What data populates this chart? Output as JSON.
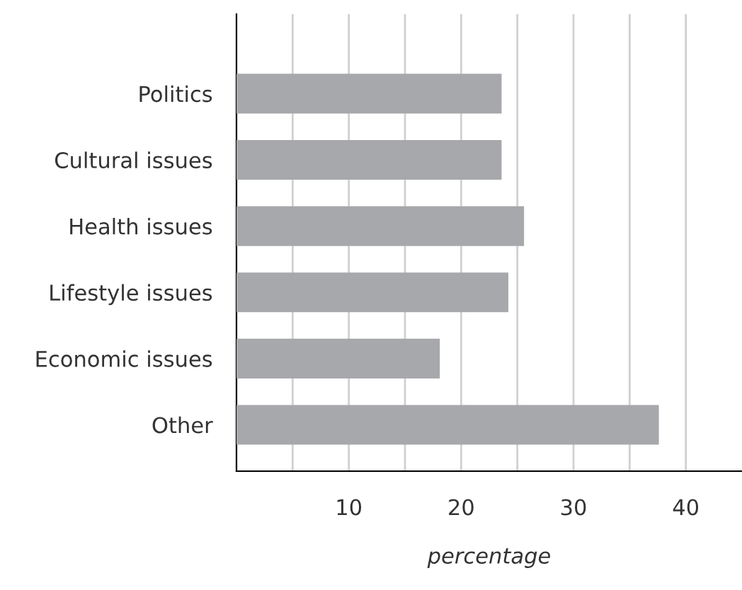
{
  "chart_data": {
    "type": "bar",
    "orientation": "horizontal",
    "xlabel": "percentage",
    "categories": [
      "Politics",
      "Cultural issues",
      "Health issues",
      "Lifestyle issues",
      "Economic issues",
      "Other"
    ],
    "values": [
      23.6,
      23.6,
      25.6,
      24.2,
      18.1,
      37.6
    ],
    "color": "#a7a8ab",
    "xlim": [
      0,
      45
    ],
    "xticks": [
      {
        "value": 5,
        "label": null
      },
      10,
      {
        "value": 15,
        "label": null
      },
      20,
      {
        "value": 25,
        "label": null
      },
      30,
      {
        "value": 35,
        "label": null
      },
      40
    ],
    "grid": "x"
  }
}
